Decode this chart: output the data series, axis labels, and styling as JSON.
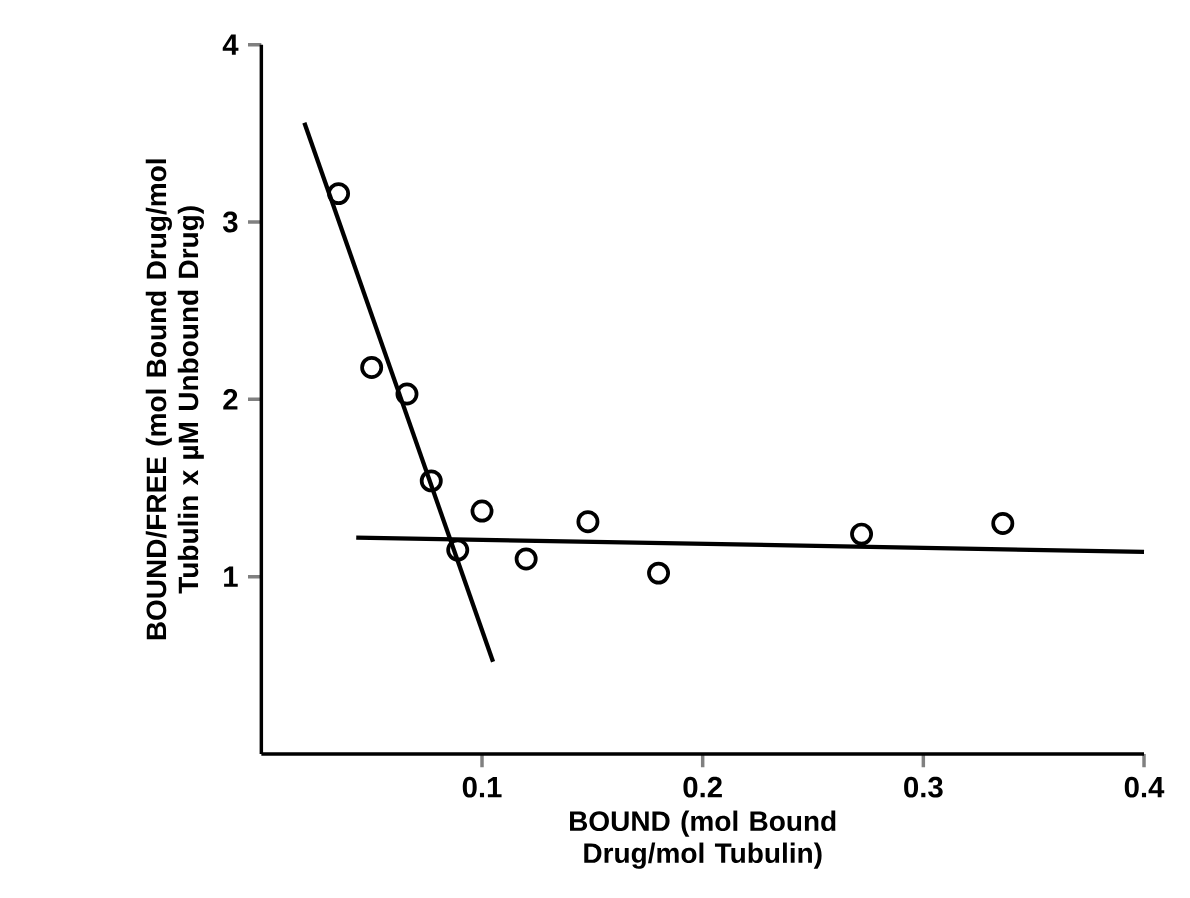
{
  "chart_data": {
    "type": "scatter",
    "xlabel": "BOUND (mol Bound Drug/mol Tubulin)",
    "ylabel": "BOUND/FREE (mol Bound Drug/mol Tubulin x µM Unbound Drug)",
    "xlim": [
      0,
      0.4
    ],
    "ylim": [
      0,
      4
    ],
    "xticks": [
      0.1,
      0.2,
      0.3,
      0.4
    ],
    "yticks": [
      1,
      2,
      3,
      4
    ],
    "series": [
      {
        "marker": "circle",
        "color": "#000000",
        "x": [
          0.035,
          0.05,
          0.066,
          0.077,
          0.089,
          0.1,
          0.12,
          0.148,
          0.18,
          0.272,
          0.336
        ],
        "values": [
          3.16,
          2.18,
          2.03,
          1.54,
          1.15,
          1.37,
          1.1,
          1.31,
          1.02,
          1.24,
          1.3
        ]
      },
      {
        "type": "line",
        "marker": "none",
        "line_style": "solid",
        "color": "#000000",
        "x": [
          0.0195,
          0.105
        ],
        "values": [
          3.56,
          0.52
        ]
      },
      {
        "type": "line",
        "marker": "none",
        "line_style": "solid",
        "color": "#000000",
        "x": [
          0.043,
          0.4
        ],
        "values": [
          1.22,
          1.14
        ]
      }
    ]
  }
}
